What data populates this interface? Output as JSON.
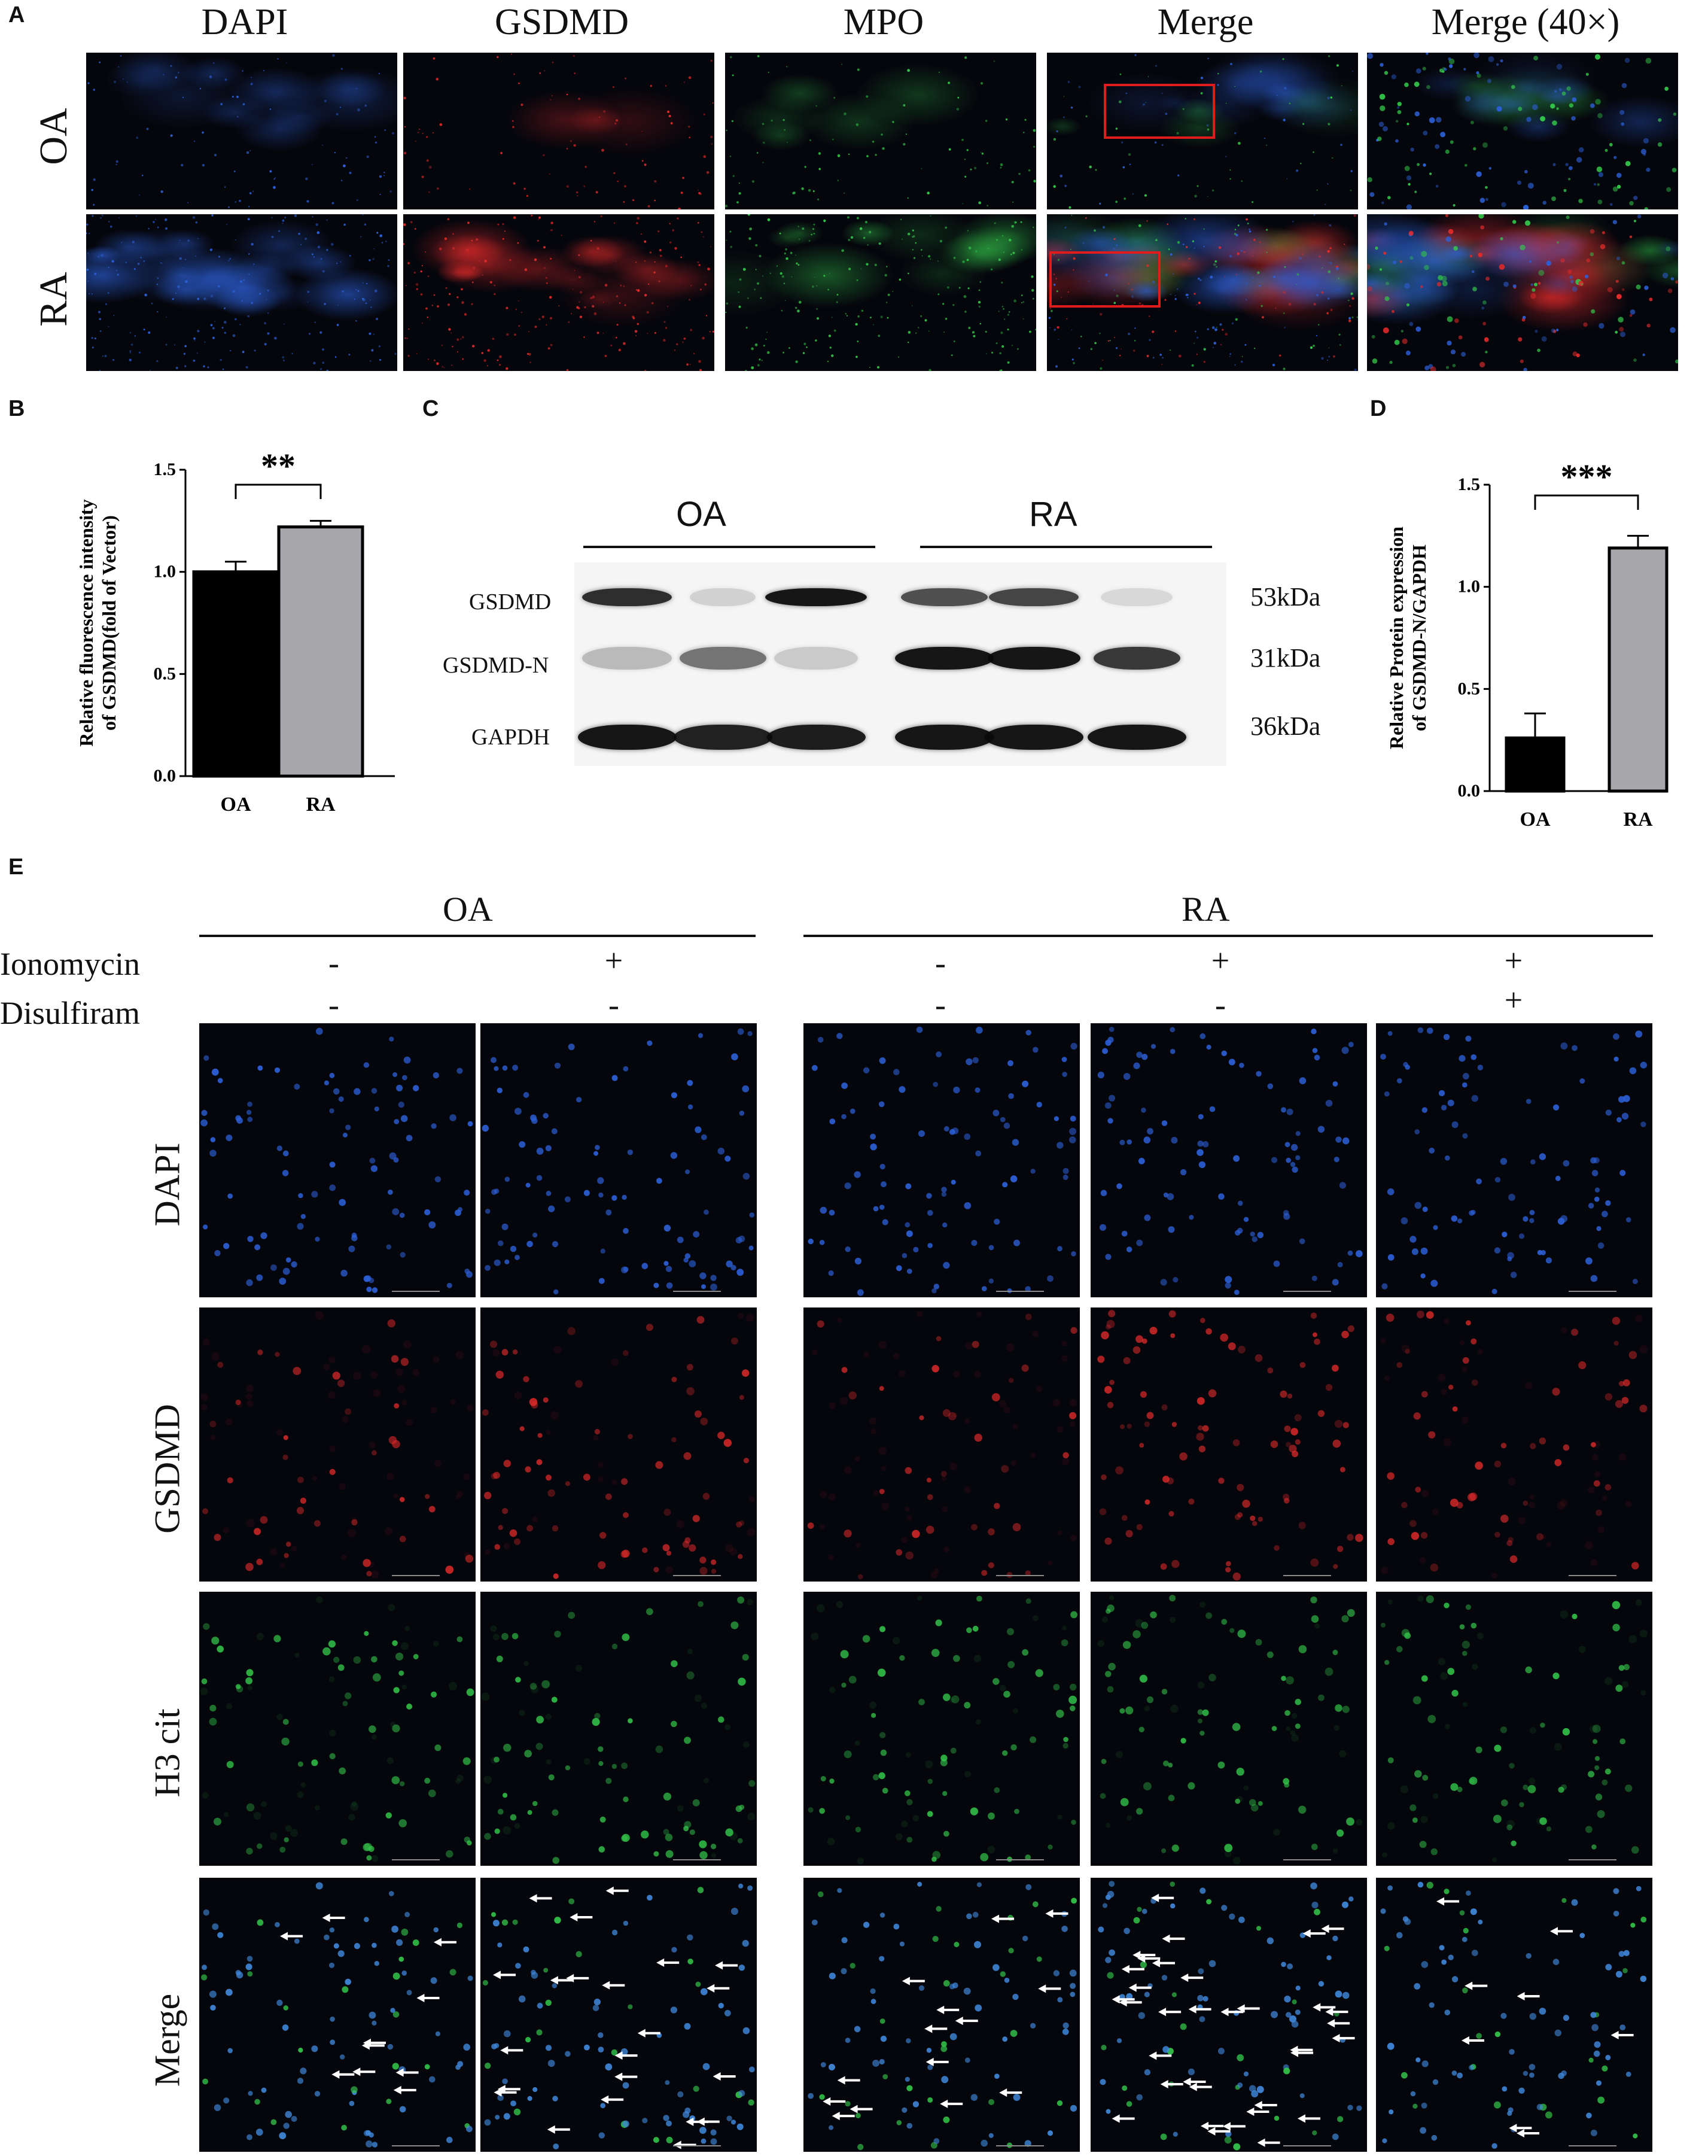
{
  "panelA": {
    "letter": "A",
    "columns": [
      "DAPI",
      "GSDMD",
      "MPO",
      "Merge",
      "Merge (40×)"
    ],
    "rows": [
      "OA",
      "RA"
    ]
  },
  "panelB": {
    "letter": "B",
    "significance": "**",
    "chart_data": {
      "type": "bar",
      "categories": [
        "OA",
        "RA"
      ],
      "values": [
        1.0,
        1.22
      ],
      "errors": [
        0.05,
        0.03
      ],
      "colors": [
        "#000000",
        "#a7a7ab"
      ],
      "ylabel": "Relative fluorescence intensity of GSDMD(fold of Vector)",
      "ylim": [
        0,
        1.5
      ],
      "yticks": [
        "0.0",
        "0.5",
        "1.0",
        "1.5"
      ],
      "grid": false
    }
  },
  "panelC": {
    "letter": "C",
    "groups": [
      "OA",
      "RA"
    ],
    "bands": [
      "GSDMD",
      "GSDMD-N",
      "GAPDH"
    ],
    "sizes": [
      "53kDa",
      "31kDa",
      "36kDa"
    ]
  },
  "panelD": {
    "letter": "D",
    "significance": "***",
    "chart_data": {
      "type": "bar",
      "categories": [
        "OA",
        "RA"
      ],
      "values": [
        0.26,
        1.19
      ],
      "errors": [
        0.12,
        0.06
      ],
      "colors": [
        "#000000",
        "#a7a7ab"
      ],
      "ylabel": "Relative Protein expression of GSDMD-N/GAPDH",
      "ylim": [
        0,
        1.5
      ],
      "yticks": [
        "0.0",
        "0.5",
        "1.0",
        "1.5"
      ],
      "grid": false
    }
  },
  "panelE": {
    "letter": "E",
    "groups": [
      "OA",
      "RA"
    ],
    "treatments": [
      "Ionomycin",
      "Disulfiram"
    ],
    "ionomycin": [
      "-",
      "+",
      "-",
      "+",
      "+"
    ],
    "disulfiram": [
      "-",
      "-",
      "-",
      "-",
      "+"
    ],
    "rows": [
      "DAPI",
      "GSDMD",
      "H3 cit",
      "Merge"
    ]
  },
  "colors": {
    "dapi": "#2c5fd6",
    "gsdmd": "#e02a2a",
    "mpo": "#33c44a",
    "background": "#05060c",
    "box": "#e01b1b"
  }
}
